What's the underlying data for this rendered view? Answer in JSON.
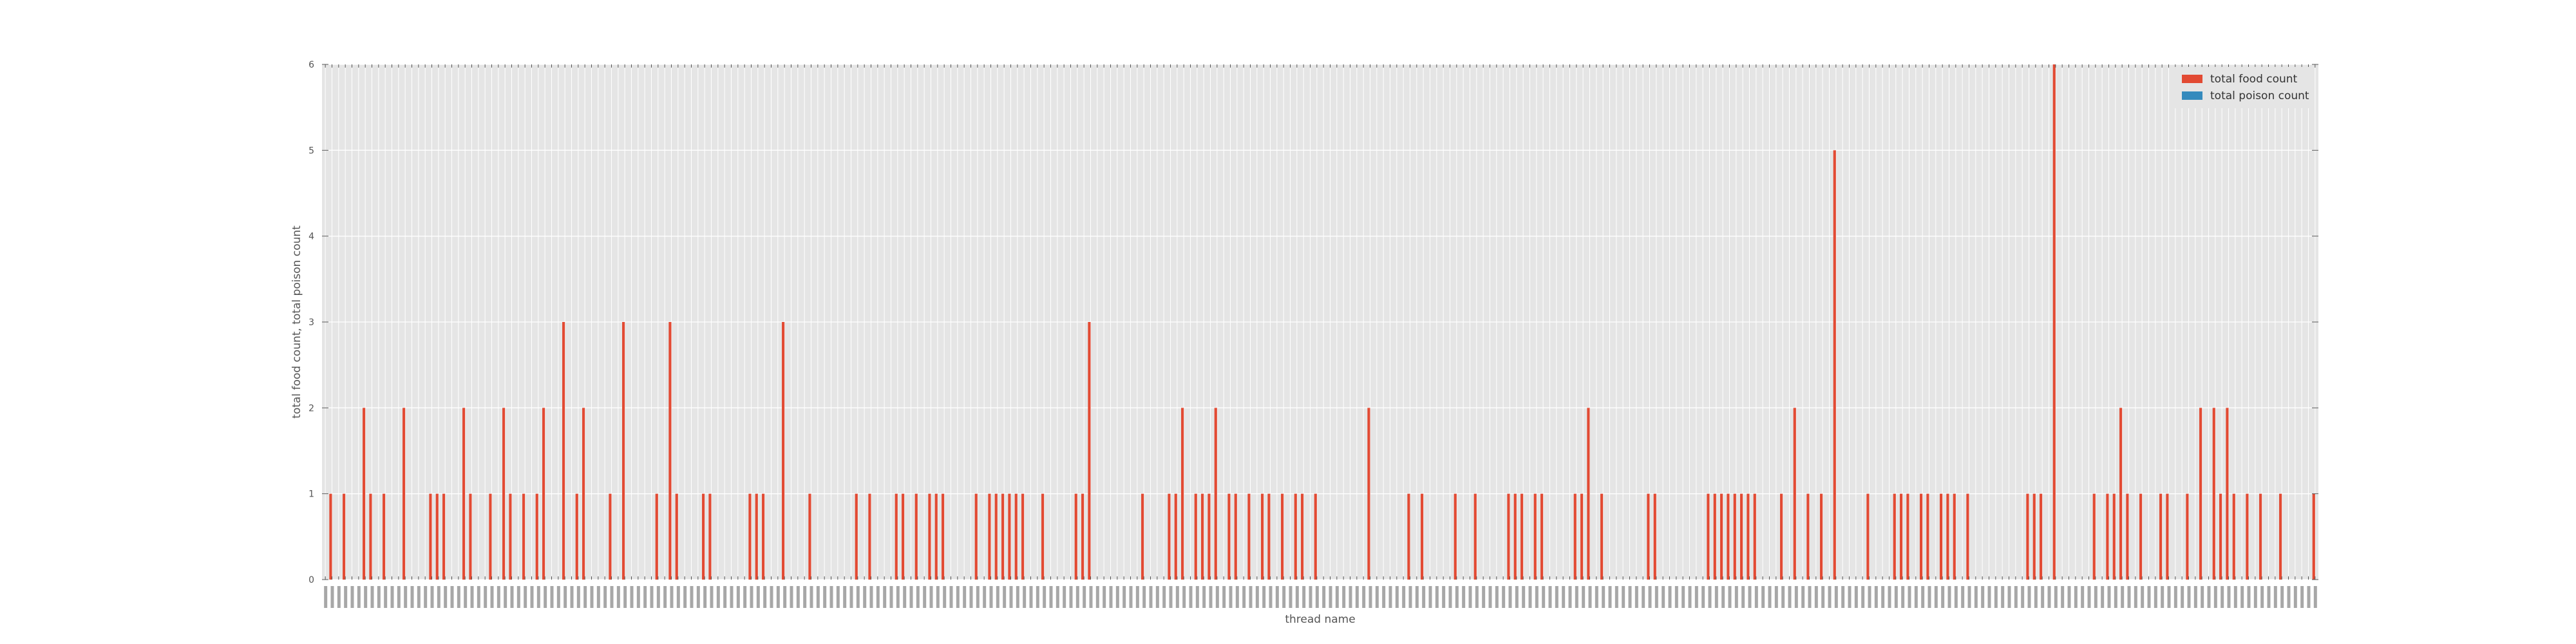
{
  "chart_data": {
    "type": "bar",
    "title": "",
    "xlabel": "thread name",
    "ylabel": "total food count, total poison count",
    "ylim": [
      0,
      6
    ],
    "yticks": [
      0,
      1,
      2,
      3,
      4,
      5,
      6
    ],
    "grid": true,
    "legend_position": "top-right",
    "x_tick_labels_readable": false,
    "categories_count": 300,
    "series": [
      {
        "name": "total food count",
        "color": "#E24A33",
        "nonzero": [
          [
            1,
            1
          ],
          [
            3,
            1
          ],
          [
            6,
            2
          ],
          [
            7,
            1
          ],
          [
            9,
            1
          ],
          [
            12,
            2
          ],
          [
            16,
            1
          ],
          [
            17,
            1
          ],
          [
            18,
            1
          ],
          [
            21,
            2
          ],
          [
            22,
            1
          ],
          [
            25,
            1
          ],
          [
            27,
            2
          ],
          [
            28,
            1
          ],
          [
            30,
            1
          ],
          [
            32,
            1
          ],
          [
            33,
            2
          ],
          [
            36,
            3
          ],
          [
            38,
            1
          ],
          [
            39,
            2
          ],
          [
            43,
            1
          ],
          [
            45,
            3
          ],
          [
            50,
            1
          ],
          [
            52,
            3
          ],
          [
            53,
            1
          ],
          [
            57,
            1
          ],
          [
            58,
            1
          ],
          [
            64,
            1
          ],
          [
            65,
            1
          ],
          [
            66,
            1
          ],
          [
            69,
            3
          ],
          [
            73,
            1
          ],
          [
            80,
            1
          ],
          [
            82,
            1
          ],
          [
            86,
            1
          ],
          [
            87,
            1
          ],
          [
            89,
            1
          ],
          [
            91,
            1
          ],
          [
            92,
            1
          ],
          [
            93,
            1
          ],
          [
            98,
            1
          ],
          [
            100,
            1
          ],
          [
            101,
            1
          ],
          [
            102,
            1
          ],
          [
            103,
            1
          ],
          [
            104,
            1
          ],
          [
            105,
            1
          ],
          [
            108,
            1
          ],
          [
            113,
            1
          ],
          [
            114,
            1
          ],
          [
            115,
            3
          ],
          [
            123,
            1
          ],
          [
            127,
            1
          ],
          [
            128,
            1
          ],
          [
            129,
            2
          ],
          [
            131,
            1
          ],
          [
            132,
            1
          ],
          [
            133,
            1
          ],
          [
            134,
            2
          ],
          [
            136,
            1
          ],
          [
            137,
            1
          ],
          [
            139,
            1
          ],
          [
            141,
            1
          ],
          [
            142,
            1
          ],
          [
            144,
            1
          ],
          [
            146,
            1
          ],
          [
            147,
            1
          ],
          [
            149,
            1
          ],
          [
            157,
            2
          ],
          [
            163,
            1
          ],
          [
            165,
            1
          ],
          [
            170,
            1
          ],
          [
            173,
            1
          ],
          [
            178,
            1
          ],
          [
            179,
            1
          ],
          [
            180,
            1
          ],
          [
            182,
            1
          ],
          [
            183,
            1
          ],
          [
            188,
            1
          ],
          [
            189,
            1
          ],
          [
            190,
            2
          ],
          [
            192,
            1
          ],
          [
            199,
            1
          ],
          [
            200,
            1
          ],
          [
            208,
            1
          ],
          [
            209,
            1
          ],
          [
            210,
            1
          ],
          [
            211,
            1
          ],
          [
            212,
            1
          ],
          [
            213,
            1
          ],
          [
            214,
            1
          ],
          [
            215,
            1
          ],
          [
            219,
            1
          ],
          [
            221,
            2
          ],
          [
            223,
            1
          ],
          [
            225,
            1
          ],
          [
            227,
            5
          ],
          [
            232,
            1
          ],
          [
            236,
            1
          ],
          [
            237,
            1
          ],
          [
            238,
            1
          ],
          [
            240,
            1
          ],
          [
            241,
            1
          ],
          [
            243,
            1
          ],
          [
            244,
            1
          ],
          [
            245,
            1
          ],
          [
            247,
            1
          ],
          [
            256,
            1
          ],
          [
            257,
            1
          ],
          [
            258,
            1
          ],
          [
            260,
            6
          ],
          [
            266,
            1
          ],
          [
            268,
            1
          ],
          [
            269,
            1
          ],
          [
            270,
            2
          ],
          [
            271,
            1
          ],
          [
            273,
            1
          ],
          [
            276,
            1
          ],
          [
            277,
            1
          ],
          [
            280,
            1
          ],
          [
            282,
            2
          ],
          [
            284,
            2
          ],
          [
            285,
            1
          ],
          [
            286,
            2
          ],
          [
            287,
            1
          ],
          [
            289,
            1
          ],
          [
            291,
            1
          ],
          [
            294,
            1
          ],
          [
            299,
            1
          ]
        ]
      },
      {
        "name": "total poison count",
        "color": "#348ABD",
        "nonzero": []
      }
    ]
  }
}
